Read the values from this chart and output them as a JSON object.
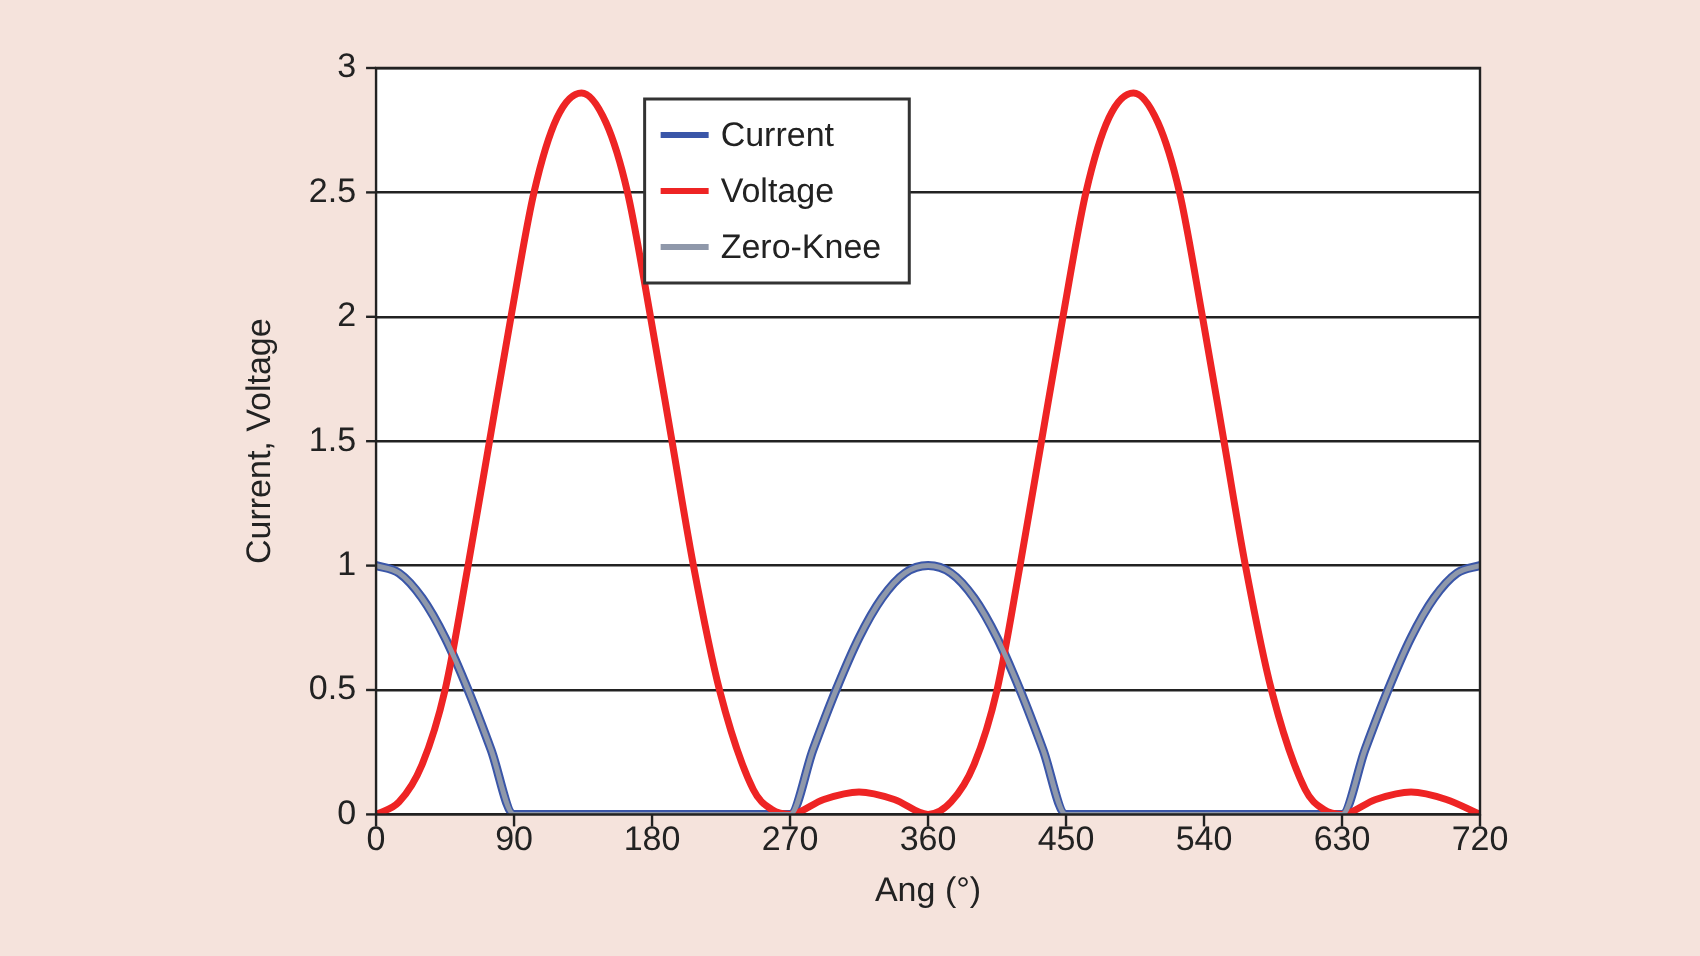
{
  "chart_data": {
    "type": "line",
    "xlabel": "Ang (°)",
    "ylabel": "Current, Voltage",
    "xlim": [
      0,
      720
    ],
    "xticks": [
      0,
      90,
      180,
      270,
      360,
      450,
      540,
      630,
      720
    ],
    "ylim": [
      0,
      3
    ],
    "yticks": [
      0,
      0.5,
      1,
      1.5,
      2,
      2.5,
      3
    ],
    "grid": "y",
    "legend": "top",
    "marker": "none",
    "line_style": "solid",
    "series": [
      {
        "name": "Current",
        "color": "#3a56a8",
        "x": [
          0,
          15,
          30,
          45,
          60,
          75,
          90,
          270,
          285,
          300,
          315,
          330,
          345,
          360,
          375,
          390,
          405,
          420,
          435,
          450,
          630,
          645,
          660,
          675,
          690,
          705,
          720
        ],
        "values": [
          1,
          0.97,
          0.87,
          0.71,
          0.5,
          0.26,
          0,
          0,
          0.26,
          0.5,
          0.71,
          0.87,
          0.97,
          1,
          0.97,
          0.87,
          0.71,
          0.5,
          0.26,
          0,
          0,
          0.26,
          0.5,
          0.71,
          0.87,
          0.97,
          1
        ]
      },
      {
        "name": "Voltage",
        "color": "#ee2424",
        "x": [
          0,
          15,
          30,
          45,
          60,
          74,
          88,
          103,
          118,
          134,
          150,
          164,
          179,
          193,
          207,
          224,
          246,
          258,
          270,
          292,
          315,
          338,
          360,
          375,
          390,
          405,
          420,
          434,
          448,
          463,
          478,
          494,
          510,
          524,
          539,
          553,
          567,
          584,
          606,
          618,
          630,
          652,
          675,
          698,
          720
        ],
        "values": [
          0,
          0.05,
          0.2,
          0.5,
          1,
          1.5,
          2,
          2.5,
          2.8,
          2.9,
          2.78,
          2.5,
          2,
          1.5,
          1,
          0.5,
          0.1,
          0.02,
          0,
          0.06,
          0.09,
          0.06,
          0,
          0.05,
          0.2,
          0.5,
          1,
          1.5,
          2,
          2.5,
          2.8,
          2.9,
          2.78,
          2.5,
          2,
          1.5,
          1,
          0.5,
          0.1,
          0.02,
          0,
          0.06,
          0.09,
          0.06,
          0
        ]
      },
      {
        "name": "Zero-Knee",
        "color": "#8f98aa",
        "x": [
          0,
          15,
          30,
          45,
          60,
          75,
          90,
          270,
          285,
          300,
          315,
          330,
          345,
          360,
          375,
          390,
          405,
          420,
          435,
          450,
          630,
          645,
          660,
          675,
          690,
          705,
          720
        ],
        "values": [
          1,
          0.97,
          0.87,
          0.71,
          0.5,
          0.26,
          0,
          0,
          0.26,
          0.5,
          0.71,
          0.87,
          0.97,
          1,
          0.97,
          0.87,
          0.71,
          0.5,
          0.26,
          0,
          0,
          0.26,
          0.5,
          0.71,
          0.87,
          0.97,
          1
        ]
      }
    ]
  }
}
